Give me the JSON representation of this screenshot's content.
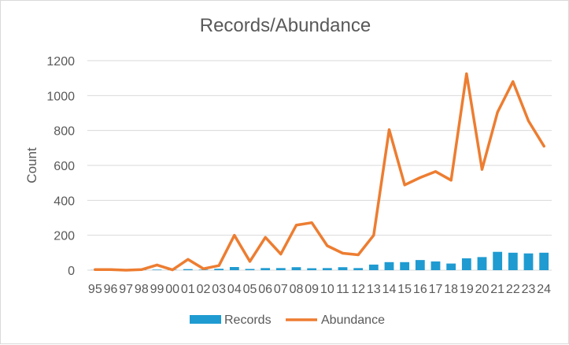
{
  "chart_data": {
    "type": "bar",
    "title": "Records/Abundance",
    "xlabel": "",
    "ylabel": "Count",
    "ylim": [
      0,
      1200
    ],
    "yticks": [
      0,
      200,
      400,
      600,
      800,
      1000,
      1200
    ],
    "grid": true,
    "legend": "bottom",
    "categories": [
      "95",
      "96",
      "97",
      "98",
      "99",
      "00",
      "01",
      "02",
      "03",
      "04",
      "05",
      "06",
      "07",
      "08",
      "09",
      "10",
      "11",
      "12",
      "13",
      "14",
      "15",
      "16",
      "17",
      "18",
      "19",
      "20",
      "21",
      "22",
      "23",
      "24"
    ],
    "series": [
      {
        "name": "Records",
        "type": "bar",
        "color": "#1f9bd1",
        "values": [
          1,
          1,
          1,
          2,
          3,
          2,
          6,
          3,
          8,
          18,
          7,
          12,
          12,
          17,
          11,
          12,
          17,
          12,
          32,
          46,
          46,
          58,
          50,
          38,
          68,
          75,
          105,
          100,
          96,
          100
        ]
      },
      {
        "name": "Abundance",
        "type": "line",
        "color": "#ed7d31",
        "values": [
          3,
          3,
          0,
          3,
          30,
          2,
          62,
          8,
          26,
          200,
          50,
          188,
          92,
          258,
          272,
          140,
          97,
          88,
          200,
          805,
          488,
          530,
          565,
          515,
          1125,
          577,
          905,
          1080,
          855,
          710
        ]
      }
    ]
  }
}
